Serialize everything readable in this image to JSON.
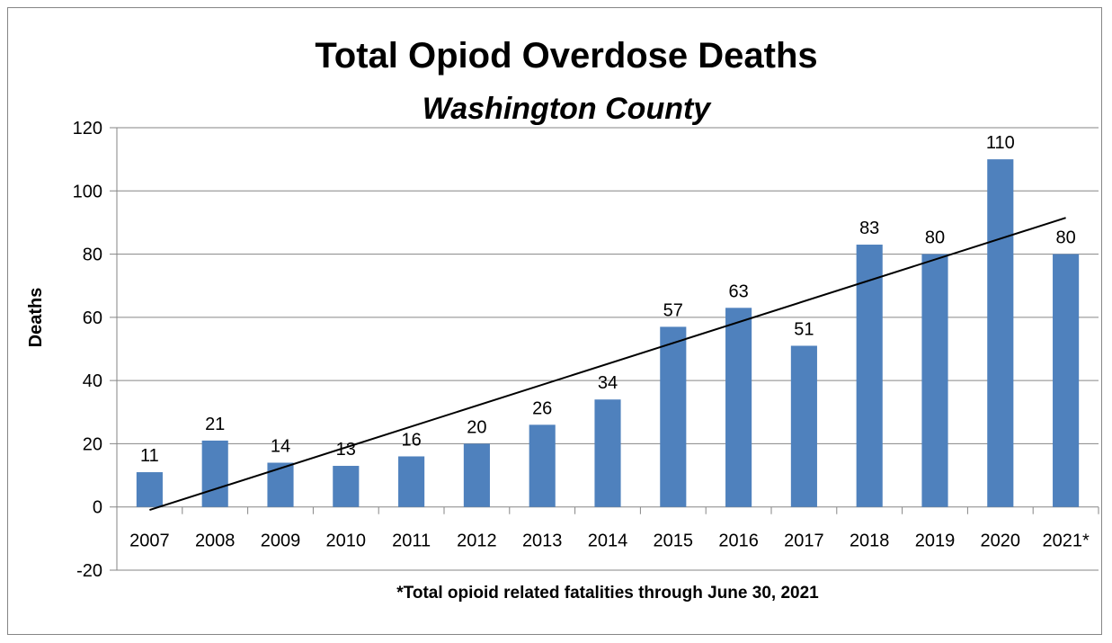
{
  "chart_data": {
    "type": "bar",
    "title": "Total Opiod Overdose Deaths",
    "subtitle": "Washington County",
    "ylabel": "Deaths",
    "xlabel": "*Total opioid related fatalities through June 30, 2021",
    "categories": [
      "2007",
      "2008",
      "2009",
      "2010",
      "2011",
      "2012",
      "2013",
      "2014",
      "2015",
      "2016",
      "2017",
      "2018",
      "2019",
      "2020",
      "2021*"
    ],
    "values": [
      11,
      21,
      14,
      13,
      16,
      20,
      26,
      34,
      57,
      63,
      51,
      83,
      80,
      110,
      80
    ],
    "ylim": [
      -20,
      120
    ],
    "yticks": [
      -20,
      0,
      20,
      40,
      60,
      80,
      100,
      120
    ],
    "grid": true,
    "trendline": "linear",
    "colors": {
      "bar": "#4f81bd",
      "trend": "#000000",
      "grid": "#868686"
    }
  }
}
